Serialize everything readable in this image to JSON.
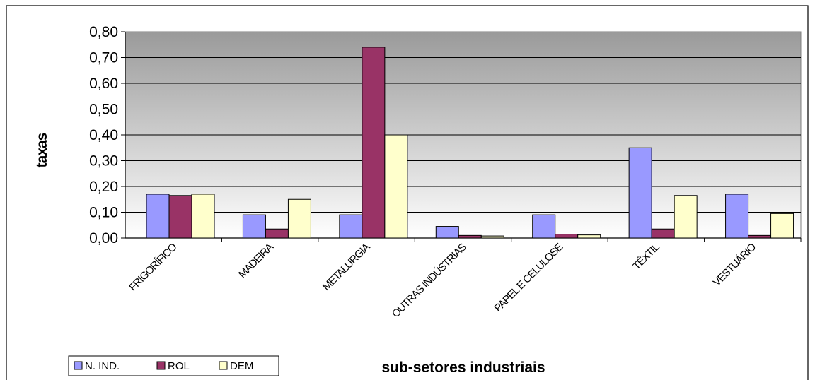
{
  "chart_data": {
    "type": "bar",
    "title": "",
    "xlabel": "sub-setores industriais",
    "ylabel": "taxas",
    "ylim": [
      0,
      0.8
    ],
    "y_ticks": [
      "0,00",
      "0,10",
      "0,20",
      "0,30",
      "0,40",
      "0,50",
      "0,60",
      "0,70",
      "0,80"
    ],
    "y_tick_values": [
      0,
      0.1,
      0.2,
      0.3,
      0.4,
      0.5,
      0.6,
      0.7,
      0.8
    ],
    "grid": true,
    "legend_position": "bottom-left",
    "categories": [
      "FRIGORÍFICO",
      "MADEIRA",
      "METALURGIA",
      "OUTRAS INDÚSTRIAS",
      "PAPEL E CELULOSE",
      "TÊXTIL",
      "VESTUÁRIO"
    ],
    "series": [
      {
        "name": "N. IND.",
        "color": "#9999ff",
        "values": [
          0.17,
          0.09,
          0.09,
          0.045,
          0.09,
          0.35,
          0.17
        ]
      },
      {
        "name": "ROL",
        "color": "#993366",
        "values": [
          0.165,
          0.035,
          0.74,
          0.01,
          0.015,
          0.035,
          0.01
        ]
      },
      {
        "name": "DEM",
        "color": "#ffffcc",
        "values": [
          0.17,
          0.15,
          0.4,
          0.008,
          0.012,
          0.165,
          0.095
        ]
      }
    ]
  }
}
